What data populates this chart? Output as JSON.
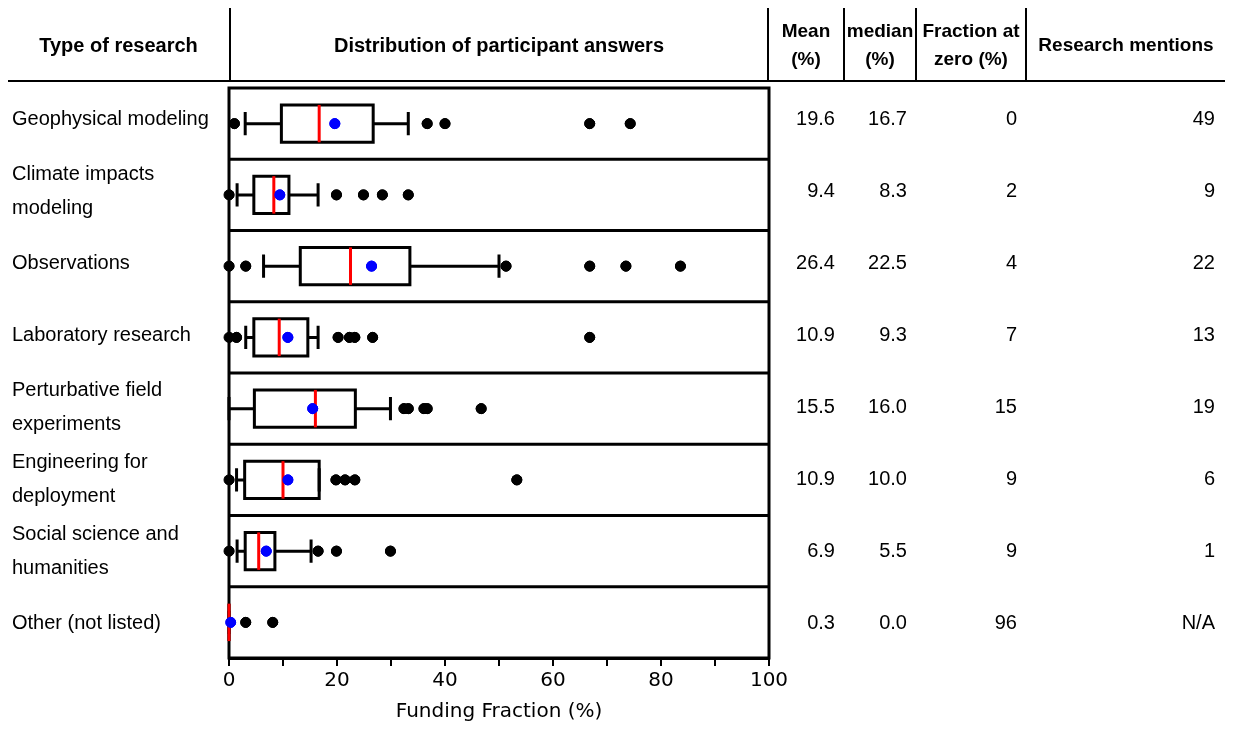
{
  "chart_data": [
    {
      "type": "box",
      "orientation": "horizontal",
      "title": "Distribution of participant answers",
      "ylabel": "Type of research",
      "xlabel": "Funding Fraction (%)",
      "categories": [
        "Geophysical modeling",
        "Climate impacts modeling",
        "Observations",
        "Laboratory research",
        "Perturbative field experiments",
        "Engineering for deployment",
        "Social science and humanities",
        "Other (not listed)"
      ],
      "xlim": [
        0,
        100
      ],
      "xticks": [
        0,
        {
          "value": 10,
          "label": null
        },
        20,
        {
          "value": 30,
          "label": null
        },
        40,
        {
          "value": 50,
          "label": null
        },
        60,
        {
          "value": 70,
          "label": null
        },
        80,
        {
          "value": 90,
          "label": null
        },
        100
      ],
      "series": [
        {
          "color": "#000000",
          "boxes": [
            {
              "low": 3,
              "q1": 9.7,
              "median": 16.7,
              "q3": 26.7,
              "high": 33.2,
              "mean": 19.6,
              "outliers": [
                1,
                36.7,
                40,
                66.8,
                74.3
              ]
            },
            {
              "low": 1.5,
              "q1": 4.6,
              "median": 8.3,
              "q3": 11.1,
              "high": 16.5,
              "mean": 9.4,
              "outliers": [
                0,
                19.9,
                24.9,
                28.4,
                33.2
              ]
            },
            {
              "low": 6.4,
              "q1": 13.2,
              "median": 22.5,
              "q3": 33.5,
              "high": 50,
              "mean": 26.4,
              "outliers": [
                0,
                3.1,
                51.3,
                66.8,
                73.5,
                83.6
              ]
            },
            {
              "low": 3.1,
              "q1": 4.6,
              "median": 9.3,
              "q3": 14.6,
              "high": 16.5,
              "mean": 10.9,
              "outliers": [
                0,
                1.4,
                20.2,
                22.3,
                23.3,
                26.6,
                66.8
              ]
            },
            {
              "low": 0,
              "q1": 4.7,
              "median": 16.0,
              "q3": 23.4,
              "high": 29.9,
              "mean": 15.5,
              "outliers": [
                32.4,
                33.2,
                36.1,
                36.7,
                46.7
              ]
            },
            {
              "low": 1.4,
              "q1": 2.9,
              "median": 10.0,
              "q3": 16.7,
              "high": 16.7,
              "mean": 10.9,
              "outliers": [
                0,
                19.8,
                21.5,
                23.3,
                53.3
              ]
            },
            {
              "low": 1.5,
              "q1": 3,
              "median": 5.5,
              "q3": 8.5,
              "high": 15.2,
              "mean": 6.9,
              "outliers": [
                0,
                16.5,
                19.9,
                29.9
              ]
            },
            {
              "low": 0,
              "q1": 0,
              "median": 0.0,
              "q3": 0,
              "high": 0,
              "mean": 0.3,
              "outliers": [
                3.1,
                8.1
              ]
            }
          ]
        }
      ]
    },
    {
      "type": "other",
      "categories": [
        "Mean (%)",
        "median (%)",
        "Fraction at zero (%)",
        "Research mentions"
      ],
      "annotations": [
        "19.6",
        "16.7",
        "0",
        "49",
        "9.4",
        "8.3",
        "2",
        "9",
        "26.4",
        "22.5",
        "4",
        "22",
        "10.9",
        "9.3",
        "7",
        "13",
        "15.5",
        "16.0",
        "15",
        "19",
        "10.9",
        "10.0",
        "9",
        "6",
        "6.9",
        "5.5",
        "9",
        "1",
        "0.3",
        "0.0",
        "96",
        "N/A"
      ]
    }
  ]
}
